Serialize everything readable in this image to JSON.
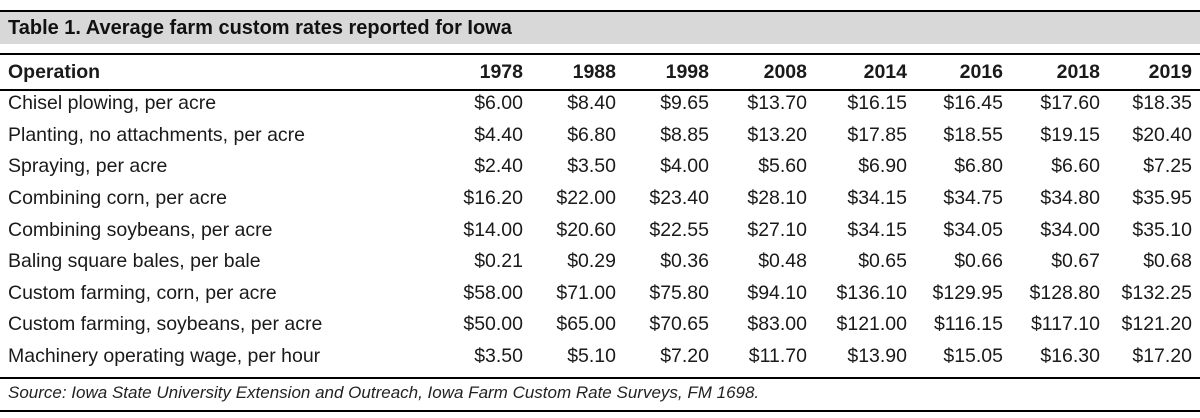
{
  "table": {
    "title": "Table 1. Average farm custom rates reported for Iowa",
    "headers": [
      "Operation",
      "1978",
      "1988",
      "1998",
      "2008",
      "2014",
      "2016",
      "2018",
      "2019"
    ],
    "rows": [
      [
        "Chisel plowing, per acre",
        "$6.00",
        "$8.40",
        "$9.65",
        "$13.70",
        "$16.15",
        "$16.45",
        "$17.60",
        "$18.35"
      ],
      [
        "Planting, no attachments, per acre",
        "$4.40",
        "$6.80",
        "$8.85",
        "$13.20",
        "$17.85",
        "$18.55",
        "$19.15",
        "$20.40"
      ],
      [
        "Spraying, per acre",
        "$2.40",
        "$3.50",
        "$4.00",
        "$5.60",
        "$6.90",
        "$6.80",
        "$6.60",
        "$7.25"
      ],
      [
        "Combining corn, per acre",
        "$16.20",
        "$22.00",
        "$23.40",
        "$28.10",
        "$34.15",
        "$34.75",
        "$34.80",
        "$35.95"
      ],
      [
        "Combining soybeans, per acre",
        "$14.00",
        "$20.60",
        "$22.55",
        "$27.10",
        "$34.15",
        "$34.05",
        "$34.00",
        "$35.10"
      ],
      [
        "Baling square bales, per bale",
        "$0.21",
        "$0.29",
        "$0.36",
        "$0.48",
        "$0.65",
        "$0.66",
        "$0.67",
        "$0.68"
      ],
      [
        "Custom farming, corn, per acre",
        "$58.00",
        "$71.00",
        "$75.80",
        "$94.10",
        "$136.10",
        "$129.95",
        "$128.80",
        "$132.25"
      ],
      [
        "Custom farming, soybeans, per acre",
        "$50.00",
        "$65.00",
        "$70.65",
        "$83.00",
        "$121.00",
        "$116.15",
        "$117.10",
        "$121.20"
      ],
      [
        "Machinery operating wage, per hour",
        "$3.50",
        "$5.10",
        "$7.20",
        "$11.70",
        "$13.90",
        "$15.05",
        "$16.30",
        "$17.20"
      ]
    ],
    "source": "Source: Iowa State University Extension and Outreach, Iowa Farm Custom Rate Surveys, FM 1698."
  },
  "colors": {
    "title_background": "#d8d8d8",
    "rule": "#000000"
  }
}
